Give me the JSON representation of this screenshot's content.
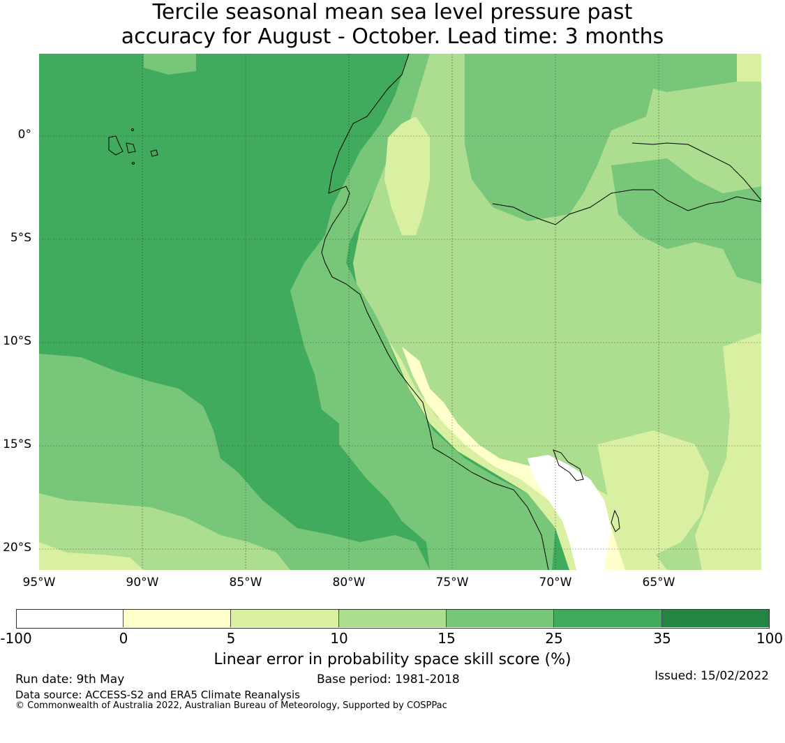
{
  "title": {
    "line1": "Tercile seasonal mean sea level pressure past",
    "line2": "accuracy for August - October. Lead time: 3 months"
  },
  "map": {
    "lon_range": [
      -95,
      -60
    ],
    "lat_range": [
      -21,
      4
    ],
    "lat_labels": [
      "0°",
      "5°S",
      "10°S",
      "15°S",
      "20°S"
    ],
    "lon_labels": [
      "95°W",
      "90°W",
      "85°W",
      "80°W",
      "75°W",
      "70°W",
      "65°W"
    ],
    "gridlines": true,
    "colors": {
      "ocean_high": "#41ab5d",
      "mid": "#78c679",
      "low": "#addd8e",
      "lower": "#d9f0a3",
      "lowest": "#ffffcc",
      "none": "#ffffff",
      "coast": "#000000"
    }
  },
  "colorbar": {
    "ticks": [
      "-100",
      "0",
      "5",
      "10",
      "15",
      "25",
      "35",
      "100"
    ],
    "colors": [
      "#ffffff",
      "#ffffcc",
      "#d9f0a3",
      "#addd8e",
      "#78c679",
      "#41ab5d",
      "#238443"
    ],
    "label": "Linear error in probability space skill score (%)"
  },
  "footer": {
    "run_date": "Run date: 9th May",
    "base_period": "Base period: 1981-2018",
    "issued": "Issued: 15/02/2022",
    "data_source": "Data source: ACCESS-S2 and ERA5 Climate Reanalysis",
    "copyright": "© Commonwealth of Australia 2022, Australian Bureau of Meteorology, Supported by COSPPac"
  }
}
